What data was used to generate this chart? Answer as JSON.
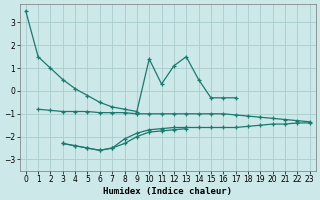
{
  "xlabel": "Humidex (Indice chaleur)",
  "bg_color": "#cce8e8",
  "grid_color": "#aacccc",
  "line_color": "#1a7a6e",
  "ylim": [
    -3.5,
    3.8
  ],
  "yticks": [
    -3,
    -2,
    -1,
    0,
    1,
    2,
    3
  ],
  "xticks": [
    0,
    1,
    2,
    3,
    4,
    5,
    6,
    7,
    8,
    9,
    10,
    11,
    12,
    13,
    14,
    15,
    16,
    17,
    18,
    19,
    20,
    21,
    22,
    23
  ],
  "line1_x": [
    0,
    1,
    2,
    3,
    4,
    5,
    6,
    7,
    8,
    9,
    10,
    11,
    12,
    13,
    14,
    15,
    16,
    17
  ],
  "line1_y": [
    3.5,
    1.5,
    1.0,
    0.5,
    0.1,
    -0.2,
    -0.5,
    -0.7,
    -0.8,
    -0.9,
    1.4,
    0.3,
    1.1,
    1.5,
    0.5,
    -0.3,
    -0.3,
    -0.3
  ],
  "line2_x": [
    1,
    2,
    3,
    4,
    5,
    6,
    7,
    8,
    9,
    10,
    11,
    12,
    13,
    14,
    15,
    16,
    17,
    18,
    19,
    20,
    21,
    22,
    23
  ],
  "line2_y": [
    -0.8,
    -0.85,
    -0.9,
    -0.9,
    -0.9,
    -0.95,
    -0.95,
    -0.95,
    -1.0,
    -1.0,
    -1.0,
    -1.0,
    -1.0,
    -1.0,
    -1.0,
    -1.0,
    -1.05,
    -1.1,
    -1.15,
    -1.2,
    -1.25,
    -1.3,
    -1.35
  ],
  "line3_x": [
    3,
    4,
    5,
    6,
    7,
    8,
    9,
    10,
    11,
    12,
    13,
    14,
    15,
    16,
    17,
    18,
    19,
    20,
    21,
    22,
    23
  ],
  "line3_y": [
    -2.3,
    -2.4,
    -2.5,
    -2.6,
    -2.5,
    -2.1,
    -1.85,
    -1.7,
    -1.65,
    -1.6,
    -1.6,
    -1.6,
    -1.6,
    -1.6,
    -1.6,
    -1.55,
    -1.5,
    -1.45,
    -1.45,
    -1.4,
    -1.4
  ],
  "line4_x": [
    3,
    4,
    5,
    6,
    7,
    8,
    9,
    10,
    11,
    12,
    13
  ],
  "line4_y": [
    -2.3,
    -2.4,
    -2.5,
    -2.6,
    -2.5,
    -2.3,
    -2.0,
    -1.8,
    -1.75,
    -1.7,
    -1.65
  ]
}
